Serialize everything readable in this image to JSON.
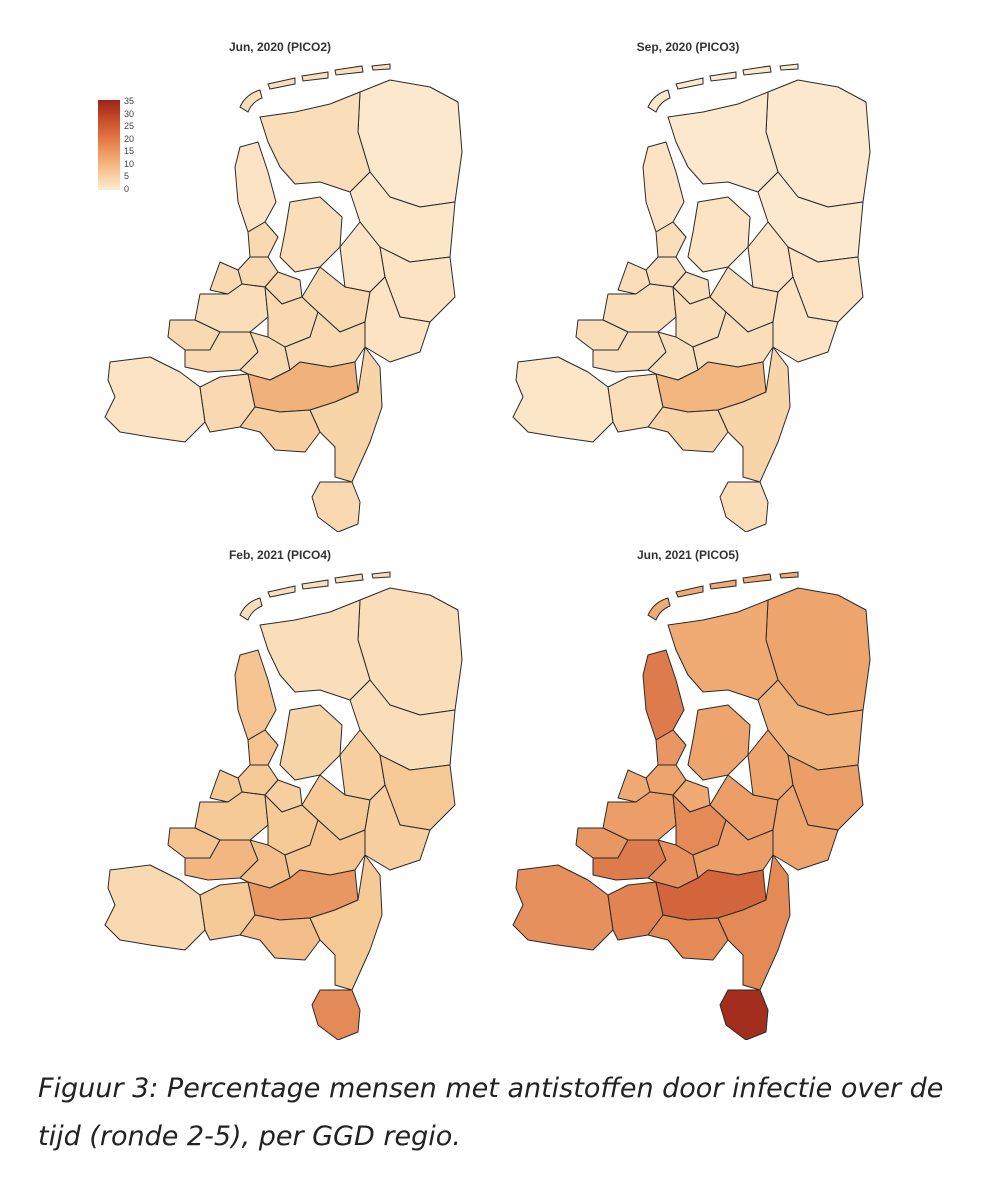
{
  "panels": [
    {
      "title": "Jun, 2020 (PICO2)",
      "values": {
        "groningen": 3,
        "friesland": 6,
        "drenthe": 4,
        "nh_noord": 5,
        "zaanstreek": 7,
        "amsterdam": 7,
        "kennemerland": 7,
        "gooi": 7,
        "flevoland": 6,
        "hollands_midden": 6,
        "haaglanden": 7,
        "utrecht": 7,
        "gelderland_midden": 7,
        "ijsselland": 5,
        "twente": 5,
        "nog": 5,
        "rotterdam": 7,
        "zhz": 7,
        "gelderland_zuid": 7,
        "zeeland": 5,
        "wbrabant": 7,
        "hvb": 14,
        "bzo": 9,
        "limburg_noord": 8,
        "zuid_limburg": 7
      }
    },
    {
      "title": "Sep, 2020 (PICO3)",
      "values": {
        "groningen": 3,
        "friesland": 3,
        "drenthe": 3,
        "nh_noord": 5,
        "zaanstreek": 6,
        "amsterdam": 6,
        "kennemerland": 6,
        "gooi": 6,
        "flevoland": 5,
        "hollands_midden": 6,
        "haaglanden": 6,
        "utrecht": 6,
        "gelderland_midden": 6,
        "ijsselland": 5,
        "twente": 5,
        "nog": 5,
        "rotterdam": 6,
        "zhz": 6,
        "gelderland_zuid": 6,
        "zeeland": 4,
        "wbrabant": 6,
        "hvb": 13,
        "bzo": 8,
        "limburg_noord": 8,
        "zuid_limburg": 6
      }
    },
    {
      "title": "Feb, 2021 (PICO4)",
      "values": {
        "groningen": 6,
        "friesland": 6,
        "drenthe": 6,
        "nh_noord": 11,
        "zaanstreek": 11,
        "amsterdam": 10,
        "kennemerland": 10,
        "gooi": 9,
        "flevoland": 8,
        "hollands_midden": 10,
        "haaglanden": 11,
        "utrecht": 10,
        "gelderland_midden": 10,
        "ijsselland": 9,
        "twente": 10,
        "nog": 9,
        "rotterdam": 13,
        "zhz": 12,
        "gelderland_zuid": 11,
        "zeeland": 7,
        "wbrabant": 10,
        "hvb": 18,
        "bzo": 12,
        "limburg_noord": 10,
        "zuid_limburg": 20
      }
    },
    {
      "title": "Jun, 2021 (PICO5)",
      "values": {
        "groningen": 16,
        "friesland": 15,
        "drenthe": 14,
        "nh_noord": 22,
        "zaanstreek": 18,
        "amsterdam": 16,
        "kennemerland": 15,
        "gooi": 15,
        "flevoland": 16,
        "hollands_midden": 17,
        "haaglanden": 18,
        "utrecht": 20,
        "gelderland_midden": 17,
        "ijsselland": 16,
        "twente": 17,
        "nog": 16,
        "rotterdam": 22,
        "zhz": 19,
        "gelderland_zuid": 17,
        "zeeland": 19,
        "wbrabant": 21,
        "hvb": 25,
        "bzo": 20,
        "limburg_noord": 20,
        "zuid_limburg": 33
      }
    }
  ],
  "legend": {
    "ticks": [
      "35",
      "30",
      "25",
      "20",
      "15",
      "10",
      "5",
      "0"
    ],
    "min": 0,
    "max": 35
  },
  "caption": {
    "line1": "Figuur 3: Percentage mensen met antistoffen door infectie over de",
    "line2": "tijd (ronde 2-5), per GGD regio."
  }
}
